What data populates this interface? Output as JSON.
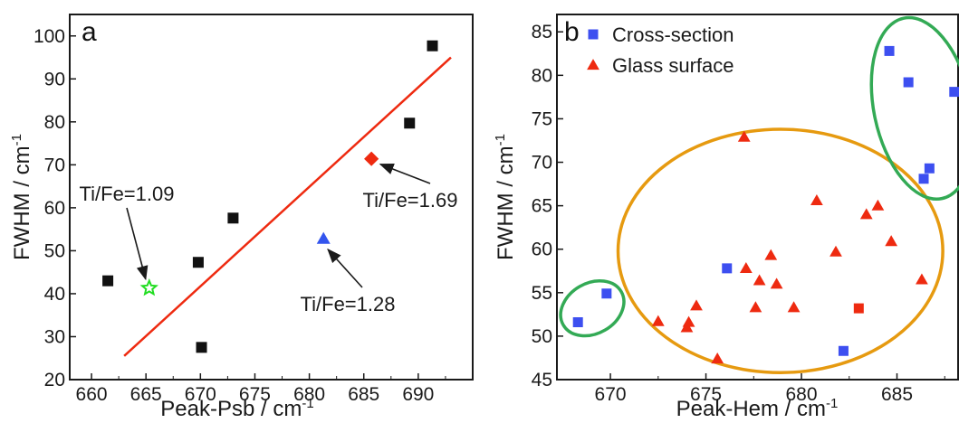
{
  "chart_data": [
    {
      "type": "scatter",
      "panel_label": "a",
      "xlabel": "Peak-Psb / cm",
      "xlabel_sup": "-1",
      "ylabel": "FWHM / cm",
      "ylabel_sup": "-1",
      "xlim": [
        658,
        695
      ],
      "ylim": [
        20,
        105
      ],
      "xticks": [
        660,
        665,
        670,
        675,
        680,
        685,
        690
      ],
      "yticks": [
        20,
        30,
        40,
        50,
        60,
        70,
        80,
        90,
        100
      ],
      "colors": {
        "black": "#111111",
        "green": "#22dd22",
        "blue": "#3355ee",
        "red": "#ee2a10",
        "fit": "#ee2a10"
      },
      "points": [
        {
          "x": 661.5,
          "y": 43,
          "marker": "square",
          "color": "#111111"
        },
        {
          "x": 665.3,
          "y": 41.3,
          "marker": "star",
          "color": "#22dd22"
        },
        {
          "x": 669.8,
          "y": 47.3,
          "marker": "square",
          "color": "#111111"
        },
        {
          "x": 670.1,
          "y": 27.5,
          "marker": "square",
          "color": "#111111"
        },
        {
          "x": 673.0,
          "y": 57.6,
          "marker": "square",
          "color": "#111111"
        },
        {
          "x": 681.3,
          "y": 52.8,
          "marker": "triangle",
          "color": "#3355ee"
        },
        {
          "x": 685.7,
          "y": 71.4,
          "marker": "diamond",
          "color": "#ee2a10"
        },
        {
          "x": 689.2,
          "y": 79.7,
          "marker": "square",
          "color": "#111111"
        },
        {
          "x": 691.3,
          "y": 97.7,
          "marker": "square",
          "color": "#111111"
        }
      ],
      "fit_line": {
        "x": [
          663,
          693
        ],
        "y": [
          25.5,
          95
        ]
      },
      "annotations": [
        {
          "text": "Ti/Fe=1.09",
          "x": 665.3,
          "y": 41.3
        },
        {
          "text": "Ti/Fe=1.69",
          "x": 685.7,
          "y": 71.4
        },
        {
          "text": "Ti/Fe=1.28",
          "x": 681.3,
          "y": 52.8
        }
      ]
    },
    {
      "type": "scatter",
      "panel_label": "b",
      "xlabel": "Peak-Hem / cm",
      "xlabel_sup": "-1",
      "ylabel": "FWHM / cm",
      "ylabel_sup": "-1",
      "xlim": [
        667.2,
        688.2
      ],
      "ylim": [
        45,
        87
      ],
      "xticks": [
        670,
        675,
        680,
        685
      ],
      "yticks": [
        45,
        50,
        55,
        60,
        65,
        70,
        75,
        80,
        85
      ],
      "legend_position": "top-left",
      "series": [
        {
          "name": "Cross-section",
          "marker": "square",
          "color": "#3d4ff0",
          "points": [
            [
              668.3,
              51.6
            ],
            [
              669.8,
              54.9
            ],
            [
              676.1,
              57.8
            ],
            [
              682.2,
              48.3
            ],
            [
              684.6,
              82.8
            ],
            [
              685.6,
              79.2
            ],
            [
              686.4,
              68.1
            ],
            [
              686.7,
              69.3
            ],
            [
              688.0,
              78.1
            ]
          ]
        },
        {
          "name": "Glass surface",
          "marker": "triangle",
          "color": "#ee2a10",
          "points": [
            [
              672.5,
              51.7
            ],
            [
              674.0,
              51.0
            ],
            [
              674.1,
              51.6
            ],
            [
              674.5,
              53.5
            ],
            [
              675.6,
              47.4
            ],
            [
              677.0,
              72.9
            ],
            [
              677.1,
              57.8
            ],
            [
              677.6,
              53.3
            ],
            [
              677.8,
              56.4
            ],
            [
              678.4,
              59.3
            ],
            [
              678.7,
              56.0
            ],
            [
              679.6,
              53.3
            ],
            [
              680.8,
              65.6
            ],
            [
              681.8,
              59.7
            ],
            [
              683.4,
              64.0
            ],
            [
              684.0,
              65.0
            ],
            [
              684.7,
              60.9
            ],
            [
              686.3,
              56.5
            ]
          ]
        },
        {
          "name": "",
          "marker": "square",
          "color": "#ee2a10",
          "points": [
            [
              683.0,
              53.2
            ]
          ]
        }
      ],
      "groupings": [
        {
          "shape": "ellipse",
          "color": "#33aa55",
          "cx": 669.05,
          "cy": 53.2,
          "rx": 1.75,
          "ry": 2.9,
          "rotate": -30
        },
        {
          "shape": "ellipse",
          "color": "#e69a10",
          "cx": 678.9,
          "cy": 59.8,
          "rx": 8.5,
          "ry": 14.0,
          "rotate": 0
        },
        {
          "shape": "ellipse",
          "color": "#33aa55",
          "cx": 686.35,
          "cy": 76.2,
          "rx": 2.55,
          "ry": 10.6,
          "rotate": -12
        }
      ]
    }
  ]
}
